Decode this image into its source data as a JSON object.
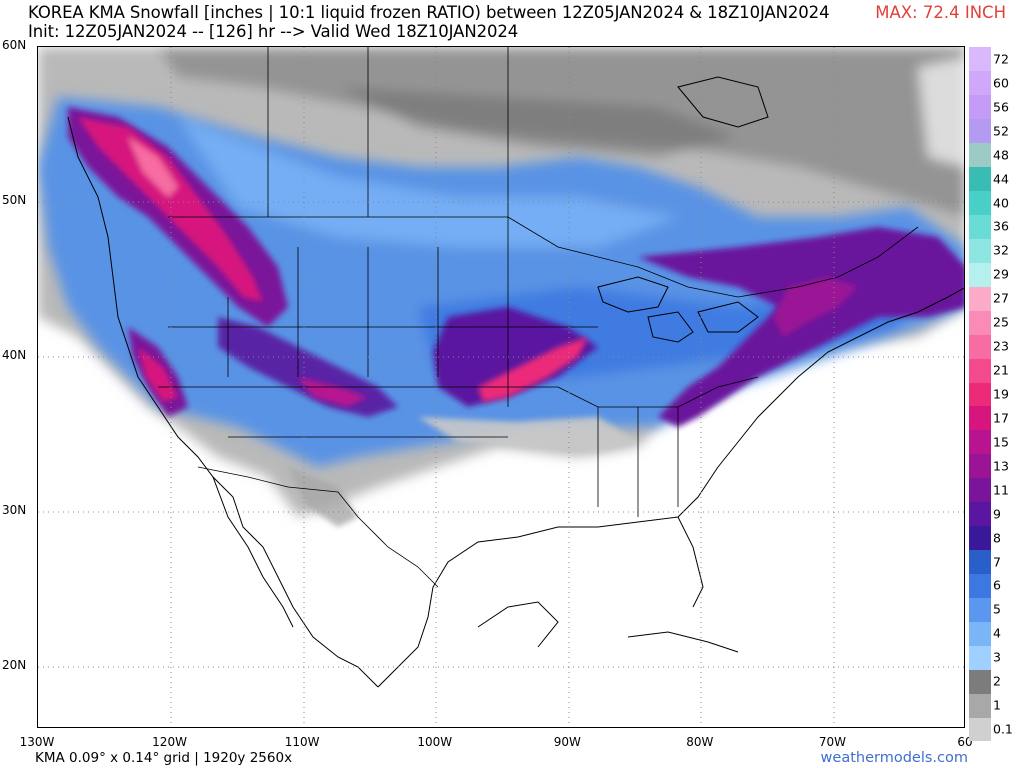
{
  "header": {
    "title_line1": "KOREA KMA Snowfall [inches | 10:1 liquid frozen RATIO) between 12Z05JAN2024 & 18Z10JAN2024",
    "title_line2": "Init: 12Z05JAN2024 -- [126] hr --> Valid Wed 18Z10JAN2024",
    "max_label": "MAX: 72.4 INCH"
  },
  "axes": {
    "lat_labels": [
      {
        "text": "60N",
        "lat": 60
      },
      {
        "text": "50N",
        "lat": 50
      },
      {
        "text": "40N",
        "lat": 40
      },
      {
        "text": "30N",
        "lat": 30
      },
      {
        "text": "20N",
        "lat": 20
      }
    ],
    "lon_labels": [
      {
        "text": "130W",
        "lon": -130
      },
      {
        "text": "120W",
        "lon": -120
      },
      {
        "text": "110W",
        "lon": -110
      },
      {
        "text": "100W",
        "lon": -100
      },
      {
        "text": "90W",
        "lon": -90
      },
      {
        "text": "80W",
        "lon": -80
      },
      {
        "text": "70W",
        "lon": -70
      },
      {
        "text": "60",
        "lon": -60
      }
    ]
  },
  "footer": {
    "grid_info": "KMA 0.09° x 0.14° grid | 1920y 2560x",
    "site": "weathermodels.com"
  },
  "legend": {
    "ticks": [
      "0.1",
      "1",
      "2",
      "3",
      "4",
      "5",
      "6",
      "7",
      "8",
      "9",
      "11",
      "13",
      "15",
      "17",
      "19",
      "21",
      "23",
      "25",
      "27",
      "29",
      "32",
      "36",
      "40",
      "44",
      "48",
      "52",
      "56",
      "60",
      "72"
    ],
    "colors": [
      "#d0d0d0",
      "#a8a8a8",
      "#7c7c7c",
      "#9fd0ff",
      "#7cb4f8",
      "#5b96ef",
      "#3d78e0",
      "#2a5ec8",
      "#3b189a",
      "#5a16a0",
      "#7a149a",
      "#9a1496",
      "#b81490",
      "#d6167e",
      "#ec2a7a",
      "#f34a8e",
      "#f76ca2",
      "#f98bb6",
      "#fbaac8",
      "#b6f0ee",
      "#8ee6e2",
      "#69dcd6",
      "#48cfc8",
      "#38bcb4",
      "#9ccbc6",
      "#b49af0",
      "#c49cf8",
      "#cfa8fa",
      "#d9b8fb"
    ]
  },
  "map": {
    "projection": "lat-lon",
    "lon_range": [
      -130,
      -60
    ],
    "lat_range": [
      16,
      60
    ],
    "gridlines": "dotted"
  }
}
